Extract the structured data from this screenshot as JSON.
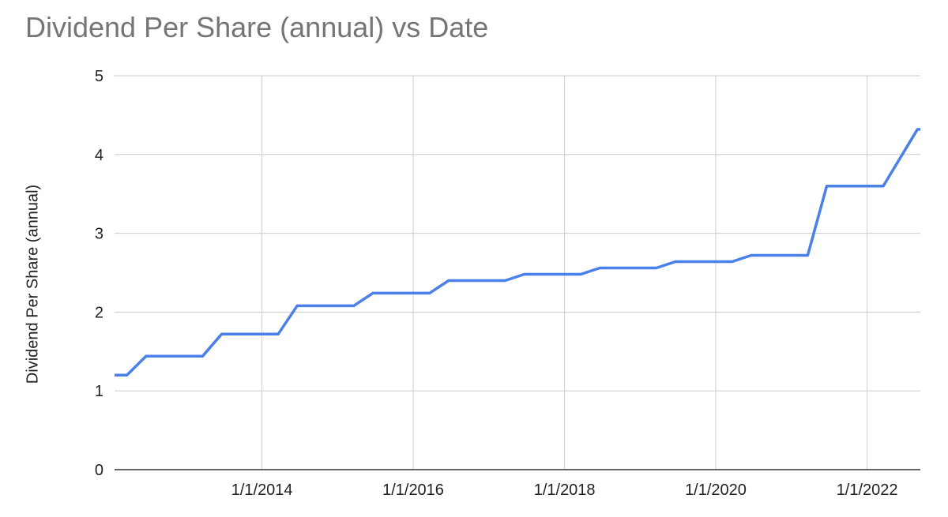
{
  "chart_data": {
    "type": "line",
    "title": "Dividend Per Share (annual) vs Date",
    "xlabel": "",
    "ylabel": "Dividend Per Share (annual)",
    "ylim": [
      0,
      5
    ],
    "y_ticks": [
      "0",
      "1",
      "2",
      "3",
      "4",
      "5"
    ],
    "x_ticks": [
      "1/1/2014",
      "1/1/2016",
      "1/1/2018",
      "1/1/2020",
      "1/1/2022"
    ],
    "xlim": [
      "2012-01-20",
      "2022-09-15"
    ],
    "grid": true,
    "legend": "none",
    "series": [
      {
        "color": "#4a80e8",
        "points": [
          {
            "x": "2012-01-20",
            "y": 1.2
          },
          {
            "x": "2012-03-20",
            "y": 1.2
          },
          {
            "x": "2012-06-20",
            "y": 1.44
          },
          {
            "x": "2013-03-20",
            "y": 1.44
          },
          {
            "x": "2013-06-20",
            "y": 1.72
          },
          {
            "x": "2014-03-20",
            "y": 1.72
          },
          {
            "x": "2014-06-20",
            "y": 2.08
          },
          {
            "x": "2015-03-20",
            "y": 2.08
          },
          {
            "x": "2015-06-20",
            "y": 2.24
          },
          {
            "x": "2016-03-20",
            "y": 2.24
          },
          {
            "x": "2016-06-20",
            "y": 2.4
          },
          {
            "x": "2017-03-20",
            "y": 2.4
          },
          {
            "x": "2017-06-20",
            "y": 2.48
          },
          {
            "x": "2018-03-20",
            "y": 2.48
          },
          {
            "x": "2018-06-20",
            "y": 2.56
          },
          {
            "x": "2019-03-20",
            "y": 2.56
          },
          {
            "x": "2019-06-20",
            "y": 2.64
          },
          {
            "x": "2020-03-20",
            "y": 2.64
          },
          {
            "x": "2020-06-20",
            "y": 2.72
          },
          {
            "x": "2021-03-20",
            "y": 2.72
          },
          {
            "x": "2021-06-20",
            "y": 3.6
          },
          {
            "x": "2022-03-20",
            "y": 3.6
          },
          {
            "x": "2022-09-01",
            "y": 4.32
          },
          {
            "x": "2022-09-15",
            "y": 4.32
          }
        ]
      }
    ]
  }
}
